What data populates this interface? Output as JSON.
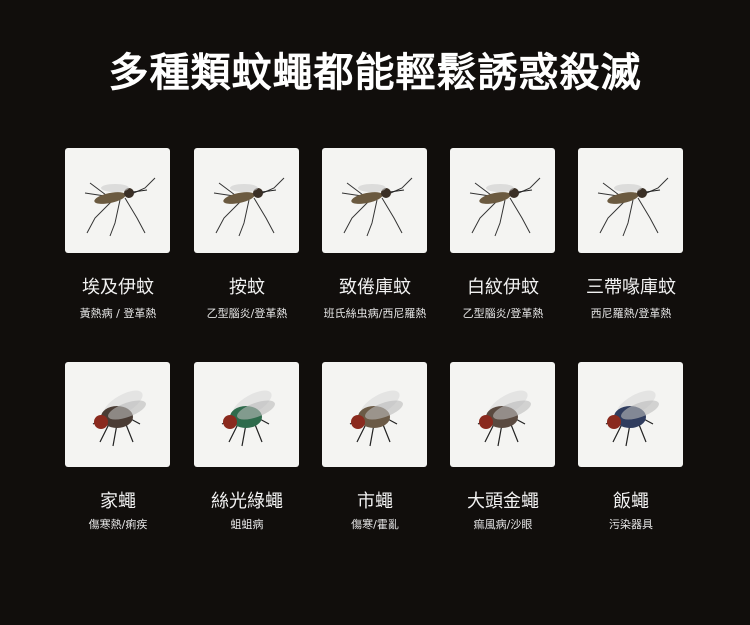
{
  "title": "多種類蚊蠅都能輕鬆誘惑殺滅",
  "mosquitoes": [
    {
      "name": "埃及伊蚊",
      "diseases": "黃熱病 / 登革熱",
      "icon": "mosquito-icon"
    },
    {
      "name": "按蚊",
      "diseases": "乙型腦炎/登革熱",
      "icon": "mosquito-icon"
    },
    {
      "name": "致倦庫蚊",
      "diseases": "班氏絲虫病/西尼羅熱",
      "icon": "mosquito-icon"
    },
    {
      "name": "白紋伊蚊",
      "diseases": "乙型腦炎/登革熱",
      "icon": "mosquito-icon"
    },
    {
      "name": "三帶喙庫蚊",
      "diseases": "西尼羅熱/登革熱",
      "icon": "mosquito-icon"
    }
  ],
  "flies": [
    {
      "name": "家蠅",
      "diseases": "傷寒熱/痢疾",
      "icon": "fly-icon",
      "color": "#4a3c34"
    },
    {
      "name": "絲光綠蠅",
      "diseases": "蛆蛆病",
      "icon": "fly-icon",
      "color": "#2f6b4c"
    },
    {
      "name": "市蠅",
      "diseases": "傷寒/霍亂",
      "icon": "fly-icon",
      "color": "#6b5a46"
    },
    {
      "name": "大頭金蠅",
      "diseases": "痲風病/沙眼",
      "icon": "fly-icon",
      "color": "#5a4a40"
    },
    {
      "name": "飯蠅",
      "diseases": "污染器具",
      "icon": "fly-icon",
      "color": "#2f3c5e"
    }
  ]
}
